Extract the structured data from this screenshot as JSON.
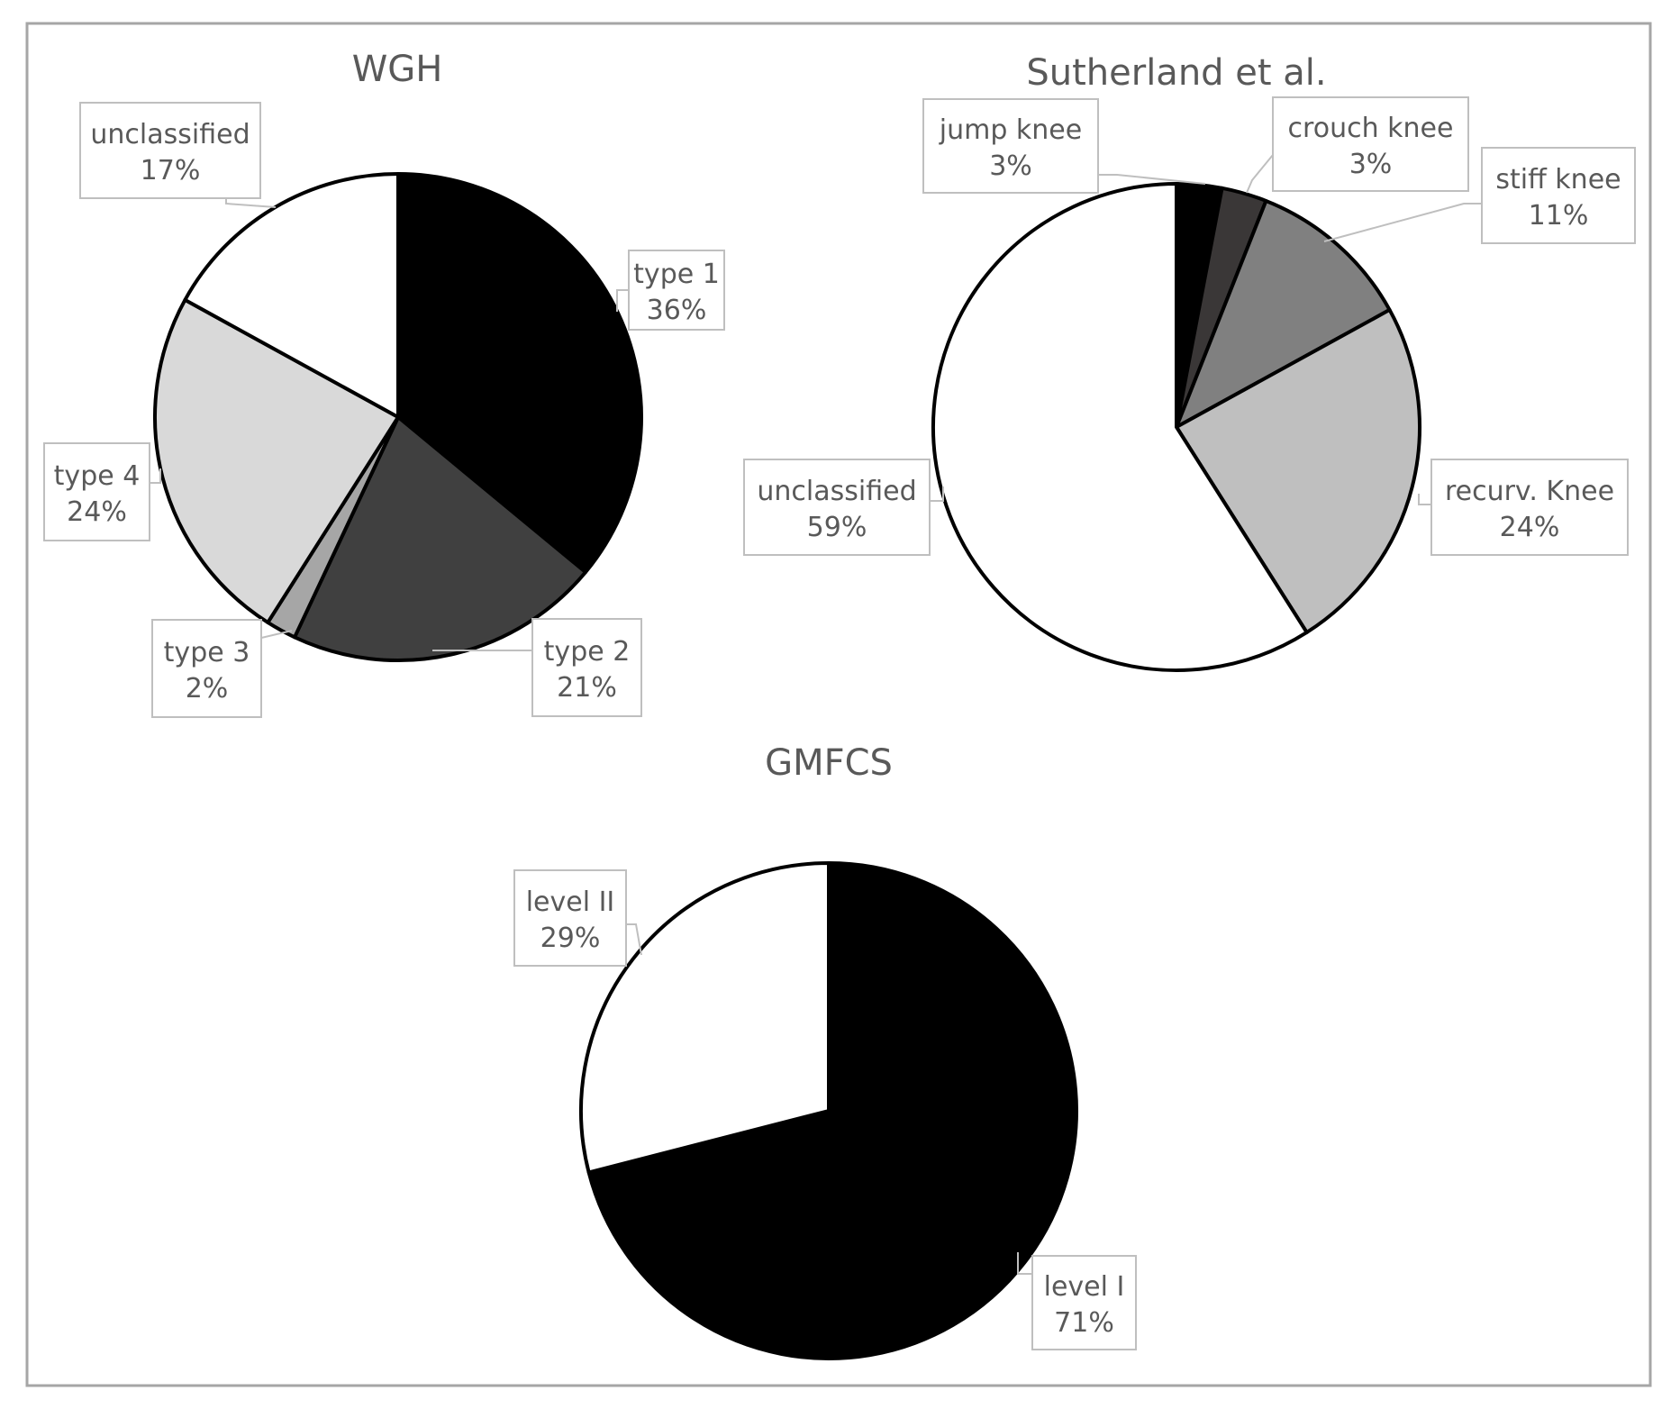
{
  "colors": {
    "black": "#000000",
    "very_dark_gray": "#3a3737",
    "dark_gray": "#404040",
    "medium_gray": "#808080",
    "light_gray": "#bfbfbf",
    "very_light_gray": "#d9d9d9",
    "gray": "#a6a6a6",
    "white": "#ffffff"
  },
  "chart_data": [
    {
      "type": "pie",
      "title": "WGH",
      "slices": [
        {
          "label": "type 1",
          "value": 36,
          "pct_label": "36%",
          "color": "#000000"
        },
        {
          "label": "type 2",
          "value": 21,
          "pct_label": "21%",
          "color": "#404040"
        },
        {
          "label": "type 3",
          "value": 2,
          "pct_label": "2%",
          "color": "#a6a6a6"
        },
        {
          "label": "type 4",
          "value": 24,
          "pct_label": "24%",
          "color": "#d9d9d9"
        },
        {
          "label": "unclassified",
          "value": 17,
          "pct_label": "17%",
          "color": "#ffffff"
        }
      ]
    },
    {
      "type": "pie",
      "title": "Sutherland et al.",
      "slices": [
        {
          "label": "jump knee",
          "value": 3,
          "pct_label": "3%",
          "color": "#000000"
        },
        {
          "label": "crouch knee",
          "value": 3,
          "pct_label": "3%",
          "color": "#3a3737"
        },
        {
          "label": "stiff knee",
          "value": 11,
          "pct_label": "11%",
          "color": "#808080"
        },
        {
          "label": "recurv. Knee",
          "value": 24,
          "pct_label": "24%",
          "color": "#bfbfbf"
        },
        {
          "label": "unclassified",
          "value": 59,
          "pct_label": "59%",
          "color": "#ffffff"
        }
      ]
    },
    {
      "type": "pie",
      "title": "GMFCS",
      "slices": [
        {
          "label": "level I",
          "value": 71,
          "pct_label": "71%",
          "color": "#000000"
        },
        {
          "label": "level II",
          "value": 29,
          "pct_label": "29%",
          "color": "#ffffff"
        }
      ]
    }
  ]
}
